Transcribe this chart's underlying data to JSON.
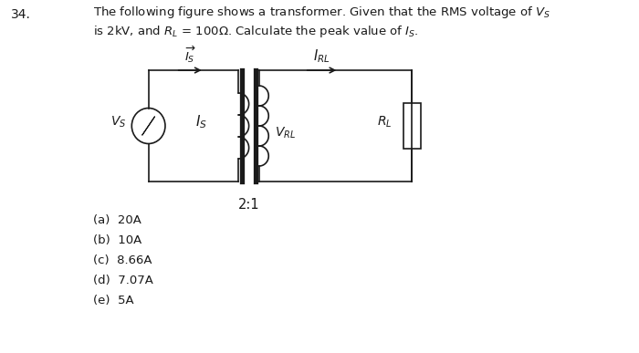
{
  "background_color": "#ffffff",
  "question_number": "34.",
  "question_text_line1": "The following figure shows a transformer. Given that the RMS voltage of $V_S$",
  "question_text_line2": "is 2kV, and $R_L$ = 100Ω. Calculate the peak value of $I_S$.",
  "ratio_label": "2:1",
  "choices": [
    "(a)  20A",
    "(b)  10A",
    "(c)  8.66A",
    "(d)  7.07A",
    "(e)  5A"
  ],
  "text_color": "#1a1a1a",
  "circuit_color": "#1a1a1a"
}
